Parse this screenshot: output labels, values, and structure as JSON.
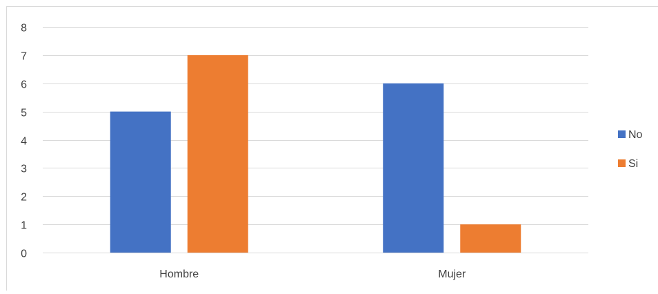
{
  "chart_data": {
    "type": "bar",
    "categories": [
      "Hombre",
      "Mujer"
    ],
    "series": [
      {
        "name": "No",
        "values": [
          5,
          6
        ],
        "color": "#4472C4"
      },
      {
        "name": "Si",
        "values": [
          7,
          1
        ],
        "color": "#ED7D31"
      }
    ],
    "yticks": [
      "0",
      "1",
      "2",
      "3",
      "4",
      "5",
      "6",
      "7",
      "8"
    ],
    "ylim": [
      0,
      8
    ],
    "grid": true,
    "legend_position": "right",
    "gridline_color": "#D9D9D9",
    "text_color": "#404040"
  }
}
